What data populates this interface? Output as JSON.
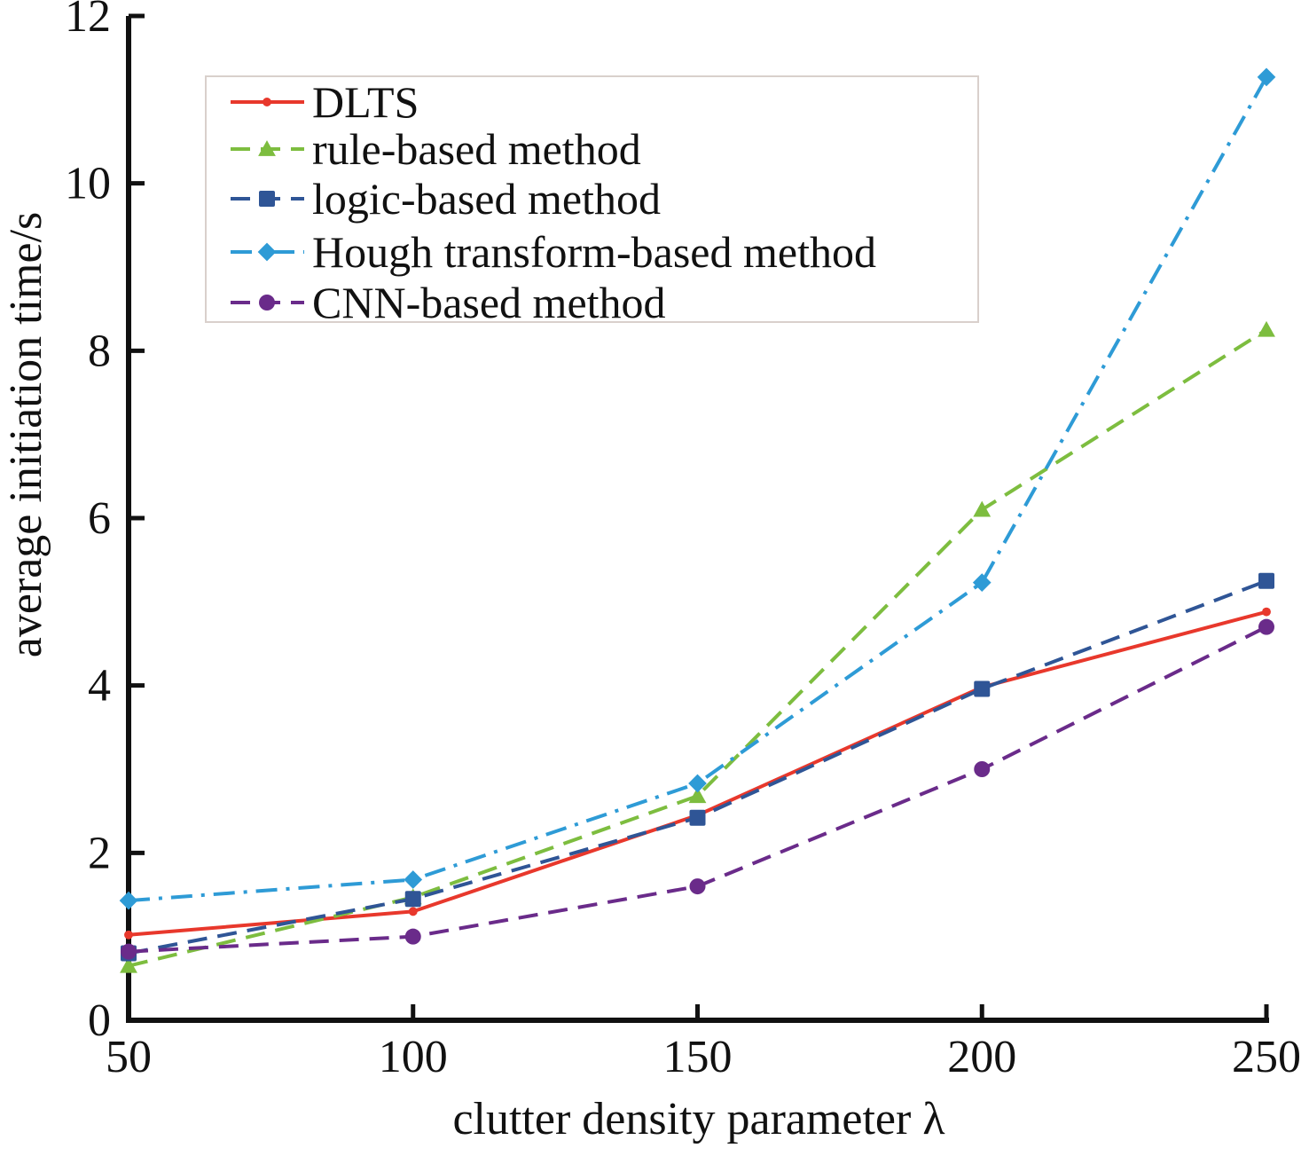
{
  "chart_data": {
    "type": "line",
    "title": "",
    "xlabel": "clutter density parameter λ",
    "ylabel": "average initiation time/s",
    "xlim": [
      50,
      250
    ],
    "ylim": [
      0,
      12
    ],
    "x": [
      50,
      100,
      150,
      200,
      250
    ],
    "x_ticks": [
      50,
      100,
      150,
      200,
      250
    ],
    "y_ticks": [
      0,
      2,
      4,
      6,
      8,
      10,
      12
    ],
    "grid": false,
    "legend_position": "top-left",
    "series": [
      {
        "name": "DLTS",
        "values": [
          1.02,
          1.3,
          2.45,
          3.98,
          4.88
        ],
        "color": "#e8382c",
        "dash": "solid",
        "marker": "dot"
      },
      {
        "name": "rule-based method",
        "values": [
          0.65,
          1.47,
          2.68,
          6.1,
          8.25
        ],
        "color": "#7dbd3f",
        "dash": "dashed",
        "marker": "triangle"
      },
      {
        "name": "logic-based method",
        "values": [
          0.8,
          1.45,
          2.42,
          3.96,
          5.25
        ],
        "color": "#2f5596",
        "dash": "dashed",
        "marker": "square"
      },
      {
        "name": "Hough transform-based method",
        "values": [
          1.43,
          1.68,
          2.83,
          5.23,
          11.27
        ],
        "color": "#2e9bd6",
        "dash": "dashdot",
        "marker": "diamond"
      },
      {
        "name": "CNN-based method",
        "values": [
          0.82,
          1.0,
          1.6,
          3.0,
          4.7
        ],
        "color": "#6a2b8a",
        "dash": "dashed",
        "marker": "circle"
      }
    ]
  }
}
